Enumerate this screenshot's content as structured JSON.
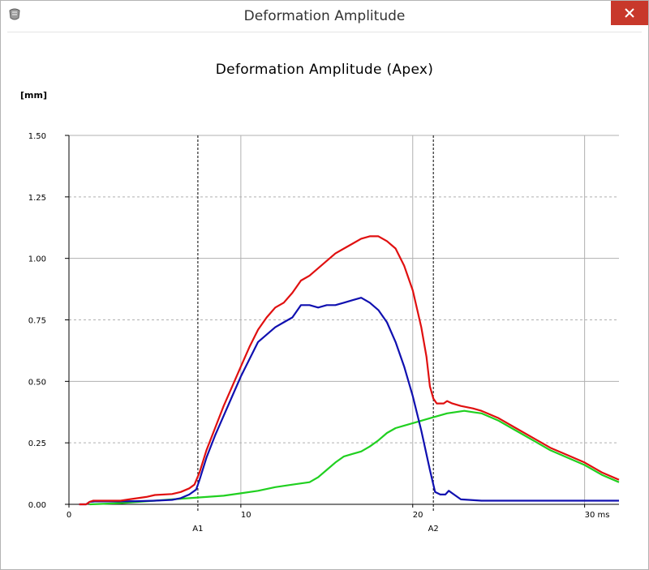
{
  "window": {
    "title": "Deformation Amplitude",
    "app_icon": "app-icon",
    "close_icon": "close-icon"
  },
  "colors": {
    "red": "#e01010",
    "blue": "#1010b0",
    "green": "#20d020"
  },
  "chart_data": {
    "type": "line",
    "title": "Deformation Amplitude (Apex)",
    "ylabel": "[mm]",
    "xunit": "ms",
    "xlim": [
      0,
      32
    ],
    "ylim": [
      0,
      1.5
    ],
    "yticks": [
      0,
      0.25,
      0.5,
      0.75,
      1.0,
      1.25,
      1.5
    ],
    "ytick_labels": [
      "0.00",
      "0.25",
      "0.50",
      "0.75",
      "1.00",
      "1.25",
      "1.50"
    ],
    "xticks": [
      0,
      10,
      20,
      30
    ],
    "xtick_labels": [
      "0",
      "10",
      "20",
      "30 ms"
    ],
    "markers": [
      {
        "label": "A1",
        "x": 7.5
      },
      {
        "label": "A2",
        "x": 21.2
      }
    ],
    "series": [
      {
        "color": "#e01010",
        "points": [
          [
            0.6,
            0
          ],
          [
            1.0,
            0
          ],
          [
            1.2,
            0.01
          ],
          [
            1.4,
            0.015
          ],
          [
            2,
            0.015
          ],
          [
            3,
            0.015
          ],
          [
            3.5,
            0.02
          ],
          [
            4,
            0.025
          ],
          [
            4.5,
            0.03
          ],
          [
            5,
            0.038
          ],
          [
            6,
            0.042
          ],
          [
            6.5,
            0.05
          ],
          [
            7,
            0.065
          ],
          [
            7.3,
            0.08
          ],
          [
            7.6,
            0.13
          ],
          [
            8,
            0.22
          ],
          [
            8.5,
            0.31
          ],
          [
            9,
            0.4
          ],
          [
            9.5,
            0.48
          ],
          [
            10,
            0.56
          ],
          [
            10.5,
            0.64
          ],
          [
            11,
            0.71
          ],
          [
            11.5,
            0.76
          ],
          [
            12,
            0.8
          ],
          [
            12.5,
            0.82
          ],
          [
            13,
            0.86
          ],
          [
            13.5,
            0.91
          ],
          [
            14,
            0.93
          ],
          [
            14.5,
            0.96
          ],
          [
            15,
            0.99
          ],
          [
            15.5,
            1.02
          ],
          [
            16,
            1.04
          ],
          [
            16.5,
            1.06
          ],
          [
            17,
            1.08
          ],
          [
            17.5,
            1.09
          ],
          [
            18,
            1.09
          ],
          [
            18.5,
            1.07
          ],
          [
            19,
            1.04
          ],
          [
            19.5,
            0.97
          ],
          [
            20,
            0.87
          ],
          [
            20.5,
            0.72
          ],
          [
            20.8,
            0.6
          ],
          [
            21,
            0.48
          ],
          [
            21.2,
            0.43
          ],
          [
            21.4,
            0.41
          ],
          [
            21.8,
            0.41
          ],
          [
            22,
            0.42
          ],
          [
            22.3,
            0.41
          ],
          [
            22.8,
            0.4
          ],
          [
            23.5,
            0.39
          ],
          [
            24,
            0.38
          ],
          [
            25,
            0.35
          ],
          [
            26,
            0.31
          ],
          [
            27,
            0.27
          ],
          [
            28,
            0.23
          ],
          [
            29,
            0.2
          ],
          [
            30,
            0.17
          ],
          [
            31,
            0.13
          ],
          [
            32,
            0.1
          ]
        ]
      },
      {
        "color": "#1010b0",
        "points": [
          [
            0.6,
            0
          ],
          [
            1.0,
            0
          ],
          [
            1.2,
            0.01
          ],
          [
            1.5,
            0.012
          ],
          [
            3,
            0.012
          ],
          [
            4,
            0.013
          ],
          [
            5,
            0.015
          ],
          [
            6,
            0.018
          ],
          [
            6.5,
            0.025
          ],
          [
            7,
            0.04
          ],
          [
            7.4,
            0.06
          ],
          [
            7.6,
            0.1
          ],
          [
            8,
            0.19
          ],
          [
            8.5,
            0.28
          ],
          [
            9,
            0.36
          ],
          [
            9.5,
            0.44
          ],
          [
            10,
            0.52
          ],
          [
            10.5,
            0.59
          ],
          [
            11,
            0.66
          ],
          [
            11.5,
            0.69
          ],
          [
            12,
            0.72
          ],
          [
            12.5,
            0.74
          ],
          [
            13,
            0.76
          ],
          [
            13.5,
            0.81
          ],
          [
            14,
            0.81
          ],
          [
            14.5,
            0.8
          ],
          [
            15,
            0.81
          ],
          [
            15.5,
            0.81
          ],
          [
            16,
            0.82
          ],
          [
            16.5,
            0.83
          ],
          [
            17,
            0.84
          ],
          [
            17.5,
            0.82
          ],
          [
            18,
            0.79
          ],
          [
            18.5,
            0.74
          ],
          [
            19,
            0.66
          ],
          [
            19.5,
            0.56
          ],
          [
            20,
            0.44
          ],
          [
            20.5,
            0.3
          ],
          [
            21,
            0.14
          ],
          [
            21.3,
            0.05
          ],
          [
            21.6,
            0.04
          ],
          [
            21.9,
            0.04
          ],
          [
            22.1,
            0.055
          ],
          [
            22.4,
            0.04
          ],
          [
            22.8,
            0.02
          ],
          [
            24,
            0.015
          ],
          [
            26,
            0.015
          ],
          [
            28,
            0.015
          ],
          [
            30,
            0.015
          ],
          [
            32,
            0.015
          ]
        ]
      },
      {
        "color": "#20d020",
        "points": [
          [
            1.2,
            0
          ],
          [
            2,
            0.002
          ],
          [
            3,
            0.005
          ],
          [
            4,
            0.01
          ],
          [
            5,
            0.015
          ],
          [
            6,
            0.02
          ],
          [
            7,
            0.025
          ],
          [
            8,
            0.03
          ],
          [
            9,
            0.035
          ],
          [
            10,
            0.045
          ],
          [
            11,
            0.055
          ],
          [
            12,
            0.07
          ],
          [
            13,
            0.08
          ],
          [
            14,
            0.09
          ],
          [
            14.5,
            0.11
          ],
          [
            15,
            0.14
          ],
          [
            15.5,
            0.17
          ],
          [
            16,
            0.195
          ],
          [
            16.5,
            0.205
          ],
          [
            17,
            0.215
          ],
          [
            17.5,
            0.235
          ],
          [
            18,
            0.26
          ],
          [
            18.5,
            0.29
          ],
          [
            19,
            0.31
          ],
          [
            19.5,
            0.32
          ],
          [
            20,
            0.33
          ],
          [
            21,
            0.35
          ],
          [
            22,
            0.37
          ],
          [
            23,
            0.38
          ],
          [
            23.5,
            0.375
          ],
          [
            24,
            0.37
          ],
          [
            25,
            0.34
          ],
          [
            26,
            0.3
          ],
          [
            27,
            0.26
          ],
          [
            28,
            0.22
          ],
          [
            29,
            0.19
          ],
          [
            30,
            0.16
          ],
          [
            31,
            0.12
          ],
          [
            32,
            0.09
          ]
        ]
      }
    ]
  }
}
